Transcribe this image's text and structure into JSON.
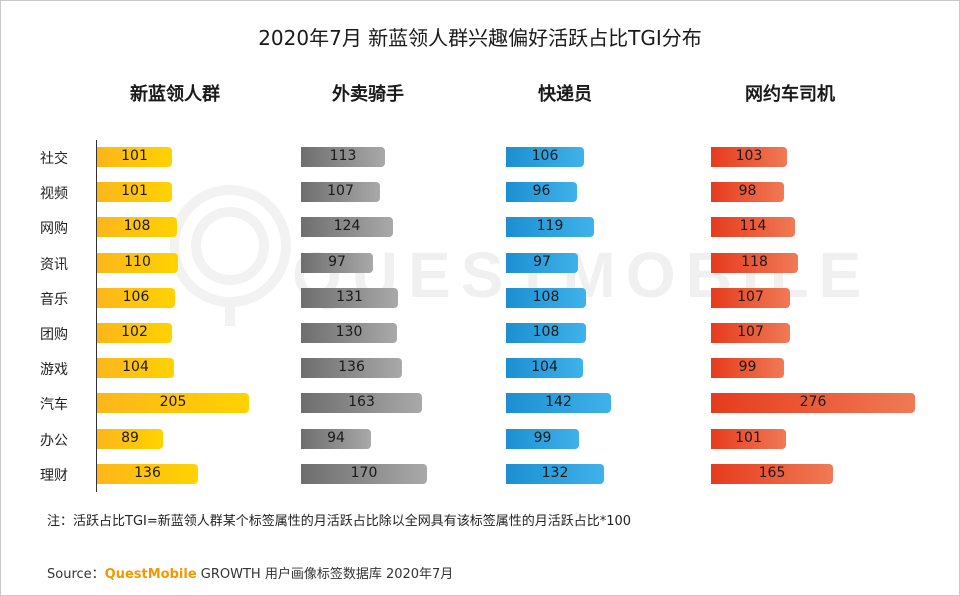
{
  "chart_data": {
    "type": "bar",
    "orientation": "horizontal",
    "title": "2020年7月 新蓝领人群兴趣偏好活跃占比TGI分布",
    "categories": [
      "社交",
      "视频",
      "网购",
      "资讯",
      "音乐",
      "团购",
      "游戏",
      "汽车",
      "办公",
      "理财"
    ],
    "series": [
      {
        "name": "新蓝领人群",
        "color": "#fdb61b",
        "values": [
          101,
          101,
          108,
          110,
          106,
          102,
          104,
          205,
          89,
          136
        ]
      },
      {
        "name": "外卖骑手",
        "color": "#8a8a8a",
        "values": [
          113,
          107,
          124,
          97,
          131,
          130,
          136,
          163,
          94,
          170
        ]
      },
      {
        "name": "快递员",
        "color": "#2a9fe0",
        "values": [
          106,
          96,
          119,
          97,
          108,
          108,
          104,
          142,
          99,
          132
        ]
      },
      {
        "name": "网约车司机",
        "color": "#ea5535",
        "values": [
          103,
          98,
          114,
          118,
          107,
          107,
          99,
          276,
          101,
          165
        ]
      }
    ]
  },
  "watermark": "QUESTMOBILE",
  "note": "注：活跃占比TGI=新蓝领人群某个标签属性的月活跃占比除以全网具有该标签属性的月活跃占比*100",
  "source": {
    "prefix": "Source：",
    "brand": "QuestMobile",
    "rest": " GROWTH 用户画像标签数据库 2020年7月"
  }
}
